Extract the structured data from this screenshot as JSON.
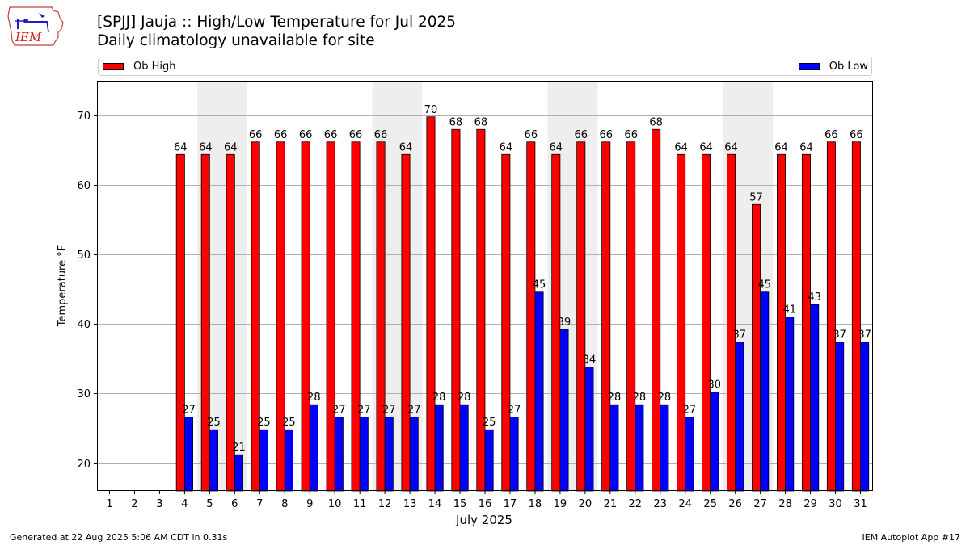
{
  "title": "[SPJJ] Jauja :: High/Low Temperature for Jul 2025",
  "subtitle": "Daily climatology unavailable for site",
  "logo_text": "IEM",
  "legend": [
    {
      "name": "Ob High",
      "color": "#ff0000"
    },
    {
      "name": "Ob Low",
      "color": "#0000ff"
    }
  ],
  "footer_left": "Generated at 22 Aug 2025 5:06 AM CDT in 0.31s",
  "footer_right": "IEM Autoplot App #17",
  "chart_data": {
    "type": "bar",
    "xlabel": "July 2025",
    "ylabel": "Temperature °F",
    "ylim": [
      16,
      75
    ],
    "yticks": [
      20,
      30,
      40,
      50,
      60,
      70
    ],
    "grid": true,
    "legend_placement": "top",
    "categories": [
      "1",
      "2",
      "3",
      "4",
      "5",
      "6",
      "7",
      "8",
      "9",
      "10",
      "11",
      "12",
      "13",
      "14",
      "15",
      "16",
      "17",
      "18",
      "19",
      "20",
      "21",
      "22",
      "23",
      "24",
      "25",
      "26",
      "27",
      "28",
      "29",
      "30",
      "31"
    ],
    "weekend_shading": [
      [
        5,
        6
      ],
      [
        12,
        13
      ],
      [
        19,
        20
      ],
      [
        26,
        27
      ]
    ],
    "series": [
      {
        "name": "Ob High",
        "color": "#ff0000",
        "values": [
          null,
          null,
          null,
          64.4,
          64.4,
          64.4,
          66.2,
          66.2,
          66.2,
          66.2,
          66.2,
          66.2,
          64.4,
          69.8,
          68.0,
          68.0,
          64.4,
          66.2,
          64.4,
          66.2,
          66.2,
          66.2,
          68.0,
          64.4,
          64.4,
          64.4,
          57.2,
          64.4,
          64.4,
          66.2,
          66.2
        ],
        "labels": [
          "",
          "",
          "",
          "64",
          "64",
          "64",
          "66",
          "66",
          "66",
          "66",
          "66",
          "66",
          "64",
          "70",
          "68",
          "68",
          "64",
          "66",
          "64",
          "66",
          "66",
          "66",
          "68",
          "64",
          "64",
          "64",
          "57",
          "64",
          "64",
          "66",
          "66"
        ]
      },
      {
        "name": "Ob Low",
        "color": "#0000ff",
        "values": [
          null,
          null,
          null,
          26.6,
          24.8,
          21.2,
          24.8,
          24.8,
          28.4,
          26.6,
          26.6,
          26.6,
          26.6,
          28.4,
          28.4,
          24.8,
          26.6,
          44.6,
          39.2,
          33.8,
          28.4,
          28.4,
          28.4,
          26.6,
          30.2,
          37.4,
          44.6,
          41.0,
          42.8,
          37.4,
          37.4
        ],
        "labels": [
          "",
          "",
          "",
          "27",
          "25",
          "21",
          "25",
          "25",
          "28",
          "27",
          "27",
          "27",
          "27",
          "28",
          "28",
          "25",
          "27",
          "45",
          "39",
          "34",
          "28",
          "28",
          "28",
          "27",
          "30",
          "37",
          "45",
          "41",
          "43",
          "37",
          "37"
        ]
      }
    ]
  }
}
